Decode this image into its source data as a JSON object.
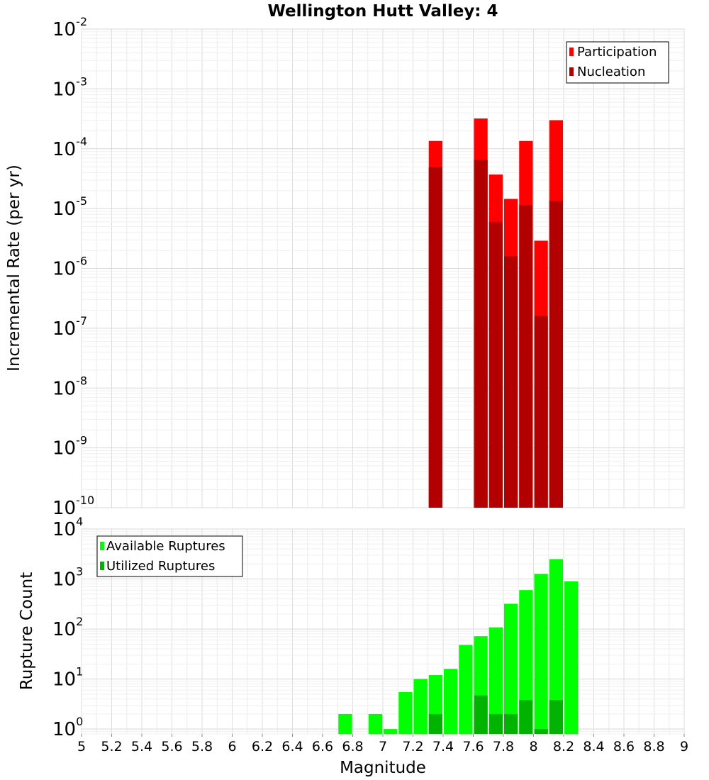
{
  "chart_data": [
    {
      "type": "bar",
      "title": "Wellington Hutt Valley: 4",
      "ylabel": "Incremental Rate (per yr)",
      "yscale": "log",
      "ylim": [
        1e-10,
        0.01
      ],
      "xlim": [
        5,
        9
      ],
      "bar_width": 0.1,
      "grid": true,
      "legend_position": "top-right",
      "y_tick_exponents": [
        "-2",
        "-3",
        "-4",
        "-5",
        "-6",
        "-7",
        "-8",
        "-9",
        "-10"
      ],
      "y_tick_base": "10",
      "series": [
        {
          "name": "Participation",
          "color": "#ff0000",
          "x": [
            7.35,
            7.65,
            7.75,
            7.85,
            7.95,
            8.05,
            8.15
          ],
          "values": [
            0.000135,
            0.00032,
            3.7e-05,
            1.45e-05,
            0.000135,
            2.9e-06,
            0.0003
          ]
        },
        {
          "name": "Nucleation",
          "color": "#b20000",
          "x": [
            7.35,
            7.65,
            7.75,
            7.85,
            7.95,
            8.05,
            8.15
          ],
          "values": [
            4.9e-05,
            6.5e-05,
            6e-06,
            1.6e-06,
            1.15e-05,
            1.6e-07,
            1.35e-05
          ]
        }
      ]
    },
    {
      "type": "bar",
      "ylabel": "Rupture Count",
      "xlabel": "Magnitude",
      "yscale": "log",
      "ylim": [
        0.8,
        10000
      ],
      "xlim": [
        5,
        9
      ],
      "bar_width": 0.1,
      "grid": true,
      "legend_position": "top-left",
      "y_tick_exponents": [
        "4",
        "3",
        "2",
        "1",
        "0"
      ],
      "y_tick_base": "10",
      "x_tick_labels": [
        "5",
        "5.2",
        "5.4",
        "5.6",
        "5.8",
        "6",
        "6.2",
        "6.4",
        "6.6",
        "6.8",
        "7",
        "7.2",
        "7.4",
        "7.6",
        "7.8",
        "8",
        "8.2",
        "8.4",
        "8.6",
        "8.8",
        "9"
      ],
      "series": [
        {
          "name": "Available Ruptures",
          "color": "#00ff00",
          "x": [
            6.75,
            6.95,
            7.05,
            7.15,
            7.25,
            7.35,
            7.45,
            7.55,
            7.65,
            7.75,
            7.85,
            7.95,
            8.05,
            8.15,
            8.25
          ],
          "values": [
            2,
            2,
            1,
            5.5,
            10,
            12,
            16,
            48,
            72,
            108,
            320,
            600,
            1270,
            2500,
            900
          ]
        },
        {
          "name": "Utilized Ruptures",
          "color": "#00b300",
          "x": [
            7.35,
            7.65,
            7.75,
            7.85,
            7.95,
            8.05,
            8.15
          ],
          "values": [
            2,
            4.7,
            2,
            2,
            3.8,
            1,
            3.8
          ]
        }
      ]
    }
  ]
}
